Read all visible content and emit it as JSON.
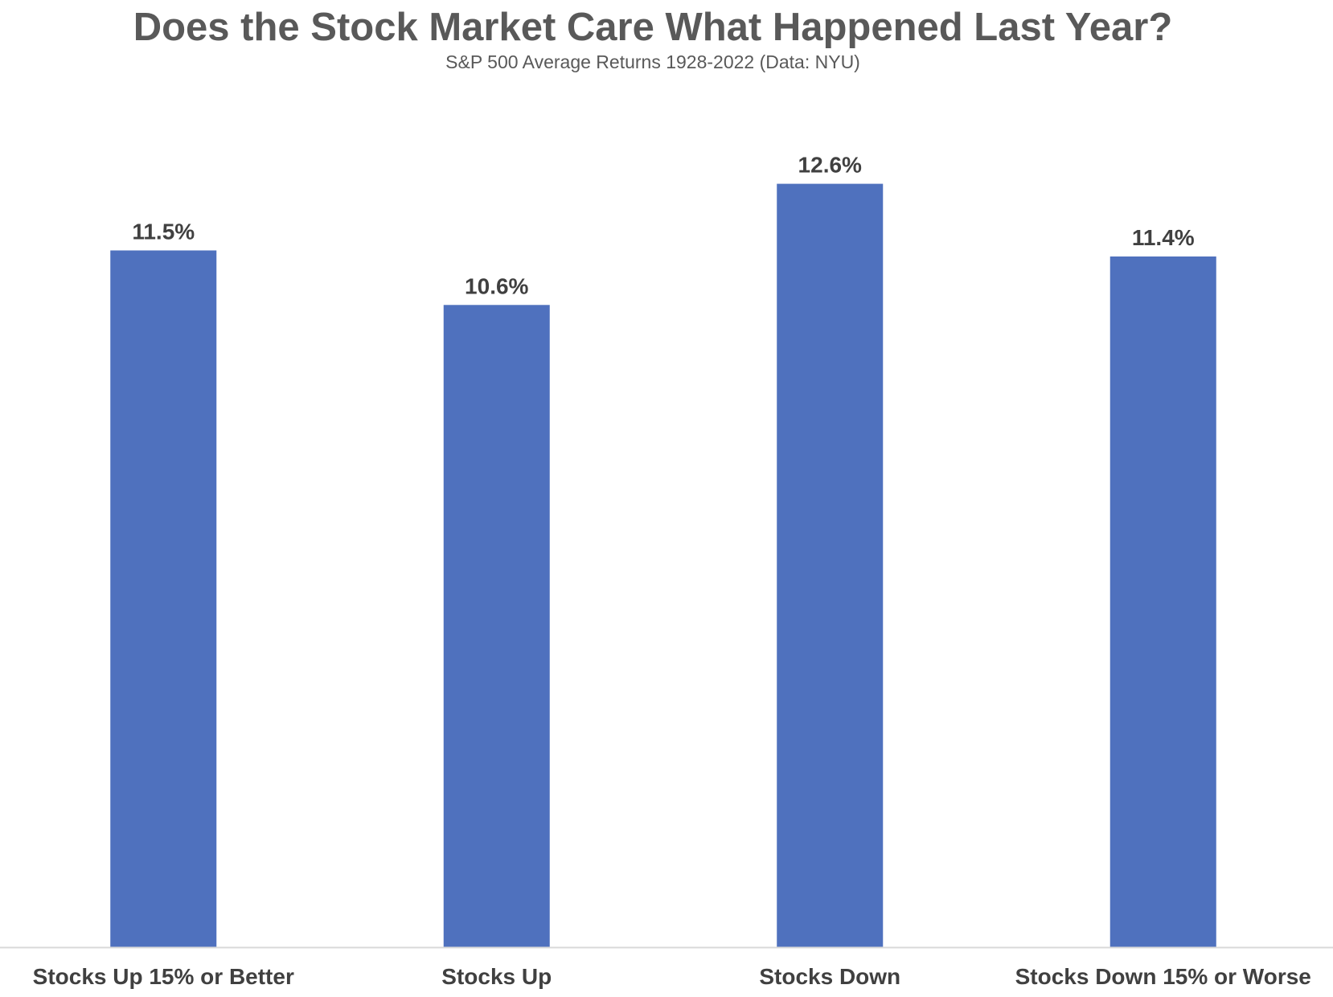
{
  "chart_data": {
    "type": "bar",
    "title": "Does the Stock Market Care What Happened Last Year?",
    "subtitle": "S&P 500 Average Returns 1928-2022 (Data: NYU)",
    "categories": [
      "Stocks Up 15% or Better",
      "Stocks Up",
      "Stocks Down",
      "Stocks Down 15% or Worse"
    ],
    "values": [
      11.5,
      10.6,
      12.6,
      11.4
    ],
    "data_labels": [
      "11.5%",
      "10.6%",
      "12.6%",
      "11.4%"
    ],
    "xlabel": "",
    "ylabel": "",
    "ylim": [
      0,
      14
    ],
    "grid": false,
    "legend": "none",
    "colors": {
      "bar": "#4F71BE",
      "axis": "#D9D9D9",
      "title": "#595959",
      "label": "#404040"
    }
  }
}
